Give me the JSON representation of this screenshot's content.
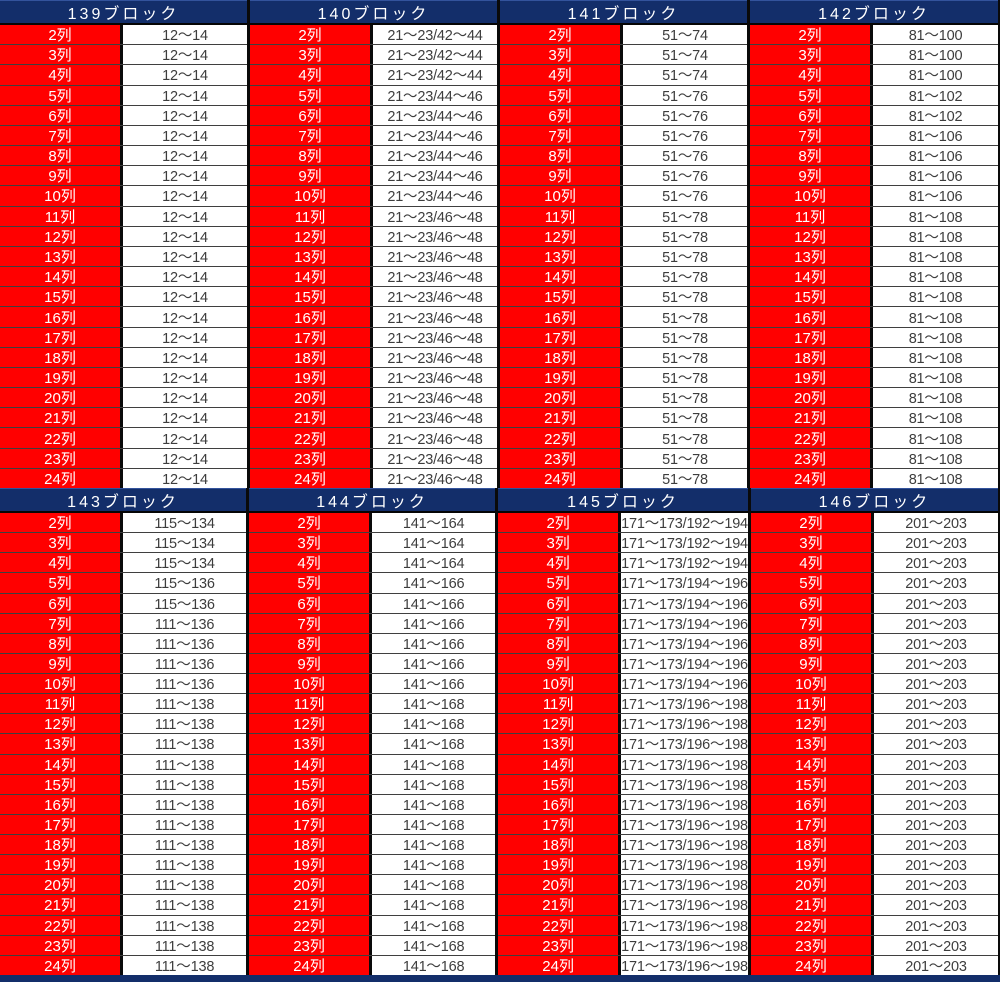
{
  "colors": {
    "header_bg": "#132e6a",
    "header_top_line": "#33539c",
    "header_text": "#ffffff",
    "row_label_bg": "#ff0000",
    "row_label_text": "#ffffff",
    "value_bg": "#ffffff",
    "value_text": "#3d3d3d",
    "grid_line": "#3f3f3f",
    "divider": "#0a0a0a"
  },
  "sections": [
    {
      "blocks": [
        {
          "title": "139ブロック",
          "rows": [
            {
              "label": "2列",
              "value": "12～14"
            },
            {
              "label": "3列",
              "value": "12～14"
            },
            {
              "label": "4列",
              "value": "12～14"
            },
            {
              "label": "5列",
              "value": "12～14"
            },
            {
              "label": "6列",
              "value": "12～14"
            },
            {
              "label": "7列",
              "value": "12～14"
            },
            {
              "label": "8列",
              "value": "12～14"
            },
            {
              "label": "9列",
              "value": "12～14"
            },
            {
              "label": "10列",
              "value": "12～14"
            },
            {
              "label": "11列",
              "value": "12～14"
            },
            {
              "label": "12列",
              "value": "12～14"
            },
            {
              "label": "13列",
              "value": "12～14"
            },
            {
              "label": "14列",
              "value": "12～14"
            },
            {
              "label": "15列",
              "value": "12～14"
            },
            {
              "label": "16列",
              "value": "12～14"
            },
            {
              "label": "17列",
              "value": "12～14"
            },
            {
              "label": "18列",
              "value": "12～14"
            },
            {
              "label": "19列",
              "value": "12～14"
            },
            {
              "label": "20列",
              "value": "12～14"
            },
            {
              "label": "21列",
              "value": "12～14"
            },
            {
              "label": "22列",
              "value": "12～14"
            },
            {
              "label": "23列",
              "value": "12～14"
            },
            {
              "label": "24列",
              "value": "12～14"
            }
          ]
        },
        {
          "title": "140ブロック",
          "rows": [
            {
              "label": "2列",
              "value": "21～23/42～44"
            },
            {
              "label": "3列",
              "value": "21～23/42～44"
            },
            {
              "label": "4列",
              "value": "21～23/42～44"
            },
            {
              "label": "5列",
              "value": "21～23/44～46"
            },
            {
              "label": "6列",
              "value": "21～23/44～46"
            },
            {
              "label": "7列",
              "value": "21～23/44～46"
            },
            {
              "label": "8列",
              "value": "21～23/44～46"
            },
            {
              "label": "9列",
              "value": "21～23/44～46"
            },
            {
              "label": "10列",
              "value": "21～23/44～46"
            },
            {
              "label": "11列",
              "value": "21～23/46～48"
            },
            {
              "label": "12列",
              "value": "21～23/46～48"
            },
            {
              "label": "13列",
              "value": "21～23/46～48"
            },
            {
              "label": "14列",
              "value": "21～23/46～48"
            },
            {
              "label": "15列",
              "value": "21～23/46～48"
            },
            {
              "label": "16列",
              "value": "21～23/46～48"
            },
            {
              "label": "17列",
              "value": "21～23/46～48"
            },
            {
              "label": "18列",
              "value": "21～23/46～48"
            },
            {
              "label": "19列",
              "value": "21～23/46～48"
            },
            {
              "label": "20列",
              "value": "21～23/46～48"
            },
            {
              "label": "21列",
              "value": "21～23/46～48"
            },
            {
              "label": "22列",
              "value": "21～23/46～48"
            },
            {
              "label": "23列",
              "value": "21～23/46～48"
            },
            {
              "label": "24列",
              "value": "21～23/46～48"
            }
          ]
        },
        {
          "title": "141ブロック",
          "rows": [
            {
              "label": "2列",
              "value": "51～74"
            },
            {
              "label": "3列",
              "value": "51～74"
            },
            {
              "label": "4列",
              "value": "51～74"
            },
            {
              "label": "5列",
              "value": "51～76"
            },
            {
              "label": "6列",
              "value": "51～76"
            },
            {
              "label": "7列",
              "value": "51～76"
            },
            {
              "label": "8列",
              "value": "51～76"
            },
            {
              "label": "9列",
              "value": "51～76"
            },
            {
              "label": "10列",
              "value": "51～76"
            },
            {
              "label": "11列",
              "value": "51～78"
            },
            {
              "label": "12列",
              "value": "51～78"
            },
            {
              "label": "13列",
              "value": "51～78"
            },
            {
              "label": "14列",
              "value": "51～78"
            },
            {
              "label": "15列",
              "value": "51～78"
            },
            {
              "label": "16列",
              "value": "51～78"
            },
            {
              "label": "17列",
              "value": "51～78"
            },
            {
              "label": "18列",
              "value": "51～78"
            },
            {
              "label": "19列",
              "value": "51～78"
            },
            {
              "label": "20列",
              "value": "51～78"
            },
            {
              "label": "21列",
              "value": "51～78"
            },
            {
              "label": "22列",
              "value": "51～78"
            },
            {
              "label": "23列",
              "value": "51～78"
            },
            {
              "label": "24列",
              "value": "51～78"
            }
          ]
        },
        {
          "title": "142ブロック",
          "rows": [
            {
              "label": "2列",
              "value": "81～100"
            },
            {
              "label": "3列",
              "value": "81～100"
            },
            {
              "label": "4列",
              "value": "81～100"
            },
            {
              "label": "5列",
              "value": "81～102"
            },
            {
              "label": "6列",
              "value": "81～102"
            },
            {
              "label": "7列",
              "value": "81～106"
            },
            {
              "label": "8列",
              "value": "81～106"
            },
            {
              "label": "9列",
              "value": "81～106"
            },
            {
              "label": "10列",
              "value": "81～106"
            },
            {
              "label": "11列",
              "value": "81～108"
            },
            {
              "label": "12列",
              "value": "81～108"
            },
            {
              "label": "13列",
              "value": "81～108"
            },
            {
              "label": "14列",
              "value": "81～108"
            },
            {
              "label": "15列",
              "value": "81～108"
            },
            {
              "label": "16列",
              "value": "81～108"
            },
            {
              "label": "17列",
              "value": "81～108"
            },
            {
              "label": "18列",
              "value": "81～108"
            },
            {
              "label": "19列",
              "value": "81～108"
            },
            {
              "label": "20列",
              "value": "81～108"
            },
            {
              "label": "21列",
              "value": "81～108"
            },
            {
              "label": "22列",
              "value": "81～108"
            },
            {
              "label": "23列",
              "value": "81～108"
            },
            {
              "label": "24列",
              "value": "81～108"
            }
          ]
        }
      ]
    },
    {
      "blocks": [
        {
          "title": "143ブロック",
          "rows": [
            {
              "label": "2列",
              "value": "115～134"
            },
            {
              "label": "3列",
              "value": "115～134"
            },
            {
              "label": "4列",
              "value": "115～134"
            },
            {
              "label": "5列",
              "value": "115～136"
            },
            {
              "label": "6列",
              "value": "115～136"
            },
            {
              "label": "7列",
              "value": "111～136"
            },
            {
              "label": "8列",
              "value": "111～136"
            },
            {
              "label": "9列",
              "value": "111～136"
            },
            {
              "label": "10列",
              "value": "111～136"
            },
            {
              "label": "11列",
              "value": "111～138"
            },
            {
              "label": "12列",
              "value": "111～138"
            },
            {
              "label": "13列",
              "value": "111～138"
            },
            {
              "label": "14列",
              "value": "111～138"
            },
            {
              "label": "15列",
              "value": "111～138"
            },
            {
              "label": "16列",
              "value": "111～138"
            },
            {
              "label": "17列",
              "value": "111～138"
            },
            {
              "label": "18列",
              "value": "111～138"
            },
            {
              "label": "19列",
              "value": "111～138"
            },
            {
              "label": "20列",
              "value": "111～138"
            },
            {
              "label": "21列",
              "value": "111～138"
            },
            {
              "label": "22列",
              "value": "111～138"
            },
            {
              "label": "23列",
              "value": "111～138"
            },
            {
              "label": "24列",
              "value": "111～138"
            }
          ]
        },
        {
          "title": "144ブロック",
          "rows": [
            {
              "label": "2列",
              "value": "141～164"
            },
            {
              "label": "3列",
              "value": "141～164"
            },
            {
              "label": "4列",
              "value": "141～164"
            },
            {
              "label": "5列",
              "value": "141～166"
            },
            {
              "label": "6列",
              "value": "141～166"
            },
            {
              "label": "7列",
              "value": "141～166"
            },
            {
              "label": "8列",
              "value": "141～166"
            },
            {
              "label": "9列",
              "value": "141～166"
            },
            {
              "label": "10列",
              "value": "141～166"
            },
            {
              "label": "11列",
              "value": "141～168"
            },
            {
              "label": "12列",
              "value": "141～168"
            },
            {
              "label": "13列",
              "value": "141～168"
            },
            {
              "label": "14列",
              "value": "141～168"
            },
            {
              "label": "15列",
              "value": "141～168"
            },
            {
              "label": "16列",
              "value": "141～168"
            },
            {
              "label": "17列",
              "value": "141～168"
            },
            {
              "label": "18列",
              "value": "141～168"
            },
            {
              "label": "19列",
              "value": "141～168"
            },
            {
              "label": "20列",
              "value": "141～168"
            },
            {
              "label": "21列",
              "value": "141～168"
            },
            {
              "label": "22列",
              "value": "141～168"
            },
            {
              "label": "23列",
              "value": "141～168"
            },
            {
              "label": "24列",
              "value": "141～168"
            }
          ]
        },
        {
          "title": "145ブロック",
          "rows": [
            {
              "label": "2列",
              "value": "171～173/192～194"
            },
            {
              "label": "3列",
              "value": "171～173/192～194"
            },
            {
              "label": "4列",
              "value": "171～173/192～194"
            },
            {
              "label": "5列",
              "value": "171～173/194～196"
            },
            {
              "label": "6列",
              "value": "171～173/194～196"
            },
            {
              "label": "7列",
              "value": "171～173/194～196"
            },
            {
              "label": "8列",
              "value": "171～173/194～196"
            },
            {
              "label": "9列",
              "value": "171～173/194～196"
            },
            {
              "label": "10列",
              "value": "171～173/194～196"
            },
            {
              "label": "11列",
              "value": "171～173/196～198"
            },
            {
              "label": "12列",
              "value": "171～173/196～198"
            },
            {
              "label": "13列",
              "value": "171～173/196～198"
            },
            {
              "label": "14列",
              "value": "171～173/196～198"
            },
            {
              "label": "15列",
              "value": "171～173/196～198"
            },
            {
              "label": "16列",
              "value": "171～173/196～198"
            },
            {
              "label": "17列",
              "value": "171～173/196～198"
            },
            {
              "label": "18列",
              "value": "171～173/196～198"
            },
            {
              "label": "19列",
              "value": "171～173/196～198"
            },
            {
              "label": "20列",
              "value": "171～173/196～198"
            },
            {
              "label": "21列",
              "value": "171～173/196～198"
            },
            {
              "label": "22列",
              "value": "171～173/196～198"
            },
            {
              "label": "23列",
              "value": "171～173/196～198"
            },
            {
              "label": "24列",
              "value": "171～173/196～198"
            }
          ]
        },
        {
          "title": "146ブロック",
          "rows": [
            {
              "label": "2列",
              "value": "201～203"
            },
            {
              "label": "3列",
              "value": "201～203"
            },
            {
              "label": "4列",
              "value": "201～203"
            },
            {
              "label": "5列",
              "value": "201～203"
            },
            {
              "label": "6列",
              "value": "201～203"
            },
            {
              "label": "7列",
              "value": "201～203"
            },
            {
              "label": "8列",
              "value": "201～203"
            },
            {
              "label": "9列",
              "value": "201～203"
            },
            {
              "label": "10列",
              "value": "201～203"
            },
            {
              "label": "11列",
              "value": "201～203"
            },
            {
              "label": "12列",
              "value": "201～203"
            },
            {
              "label": "13列",
              "value": "201～203"
            },
            {
              "label": "14列",
              "value": "201～203"
            },
            {
              "label": "15列",
              "value": "201～203"
            },
            {
              "label": "16列",
              "value": "201～203"
            },
            {
              "label": "17列",
              "value": "201～203"
            },
            {
              "label": "18列",
              "value": "201～203"
            },
            {
              "label": "19列",
              "value": "201～203"
            },
            {
              "label": "20列",
              "value": "201～203"
            },
            {
              "label": "21列",
              "value": "201～203"
            },
            {
              "label": "22列",
              "value": "201～203"
            },
            {
              "label": "23列",
              "value": "201～203"
            },
            {
              "label": "24列",
              "value": "201～203"
            }
          ]
        }
      ]
    }
  ]
}
